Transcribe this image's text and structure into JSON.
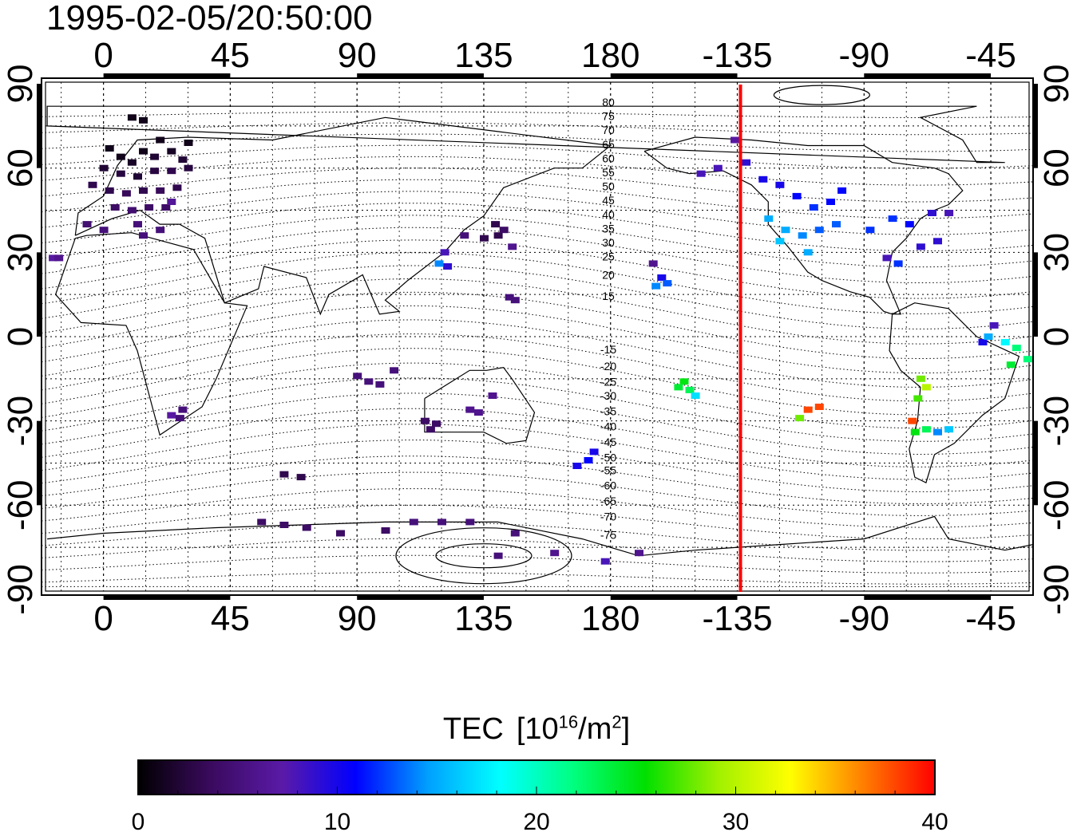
{
  "title": "1995-02-05/20:50:00",
  "map": {
    "x_ticks": [
      "0",
      "45",
      "90",
      "135",
      "180",
      "-135",
      "-90",
      "-45"
    ],
    "x_tick_lons": [
      0,
      45,
      90,
      135,
      180,
      225,
      270,
      315
    ],
    "y_ticks": [
      "90",
      "60",
      "30",
      "0",
      "-30",
      "-60",
      "-90"
    ],
    "y_tick_lats": [
      90,
      60,
      30,
      0,
      -30,
      -60,
      -90
    ],
    "lon_range": [
      -22,
      330
    ],
    "lat_range": [
      -92,
      92
    ],
    "marker_line_lon": -135,
    "marker_line_color": "#ff0000",
    "contour_labels": [
      "80",
      "75",
      "70",
      "65",
      "60",
      "55",
      "50",
      "45",
      "40",
      "35",
      "30",
      "25",
      "20",
      "15",
      "-15",
      "-20",
      "-25",
      "-30",
      "-35",
      "-40",
      "-45",
      "-50",
      "-55",
      "-60",
      "-65",
      "-70",
      "-75"
    ],
    "contour_label_lats": [
      83.5,
      78.5,
      73.5,
      68.5,
      63.5,
      58.5,
      53.5,
      48.5,
      43.5,
      38.5,
      33.5,
      28.5,
      22,
      14.5,
      -4.5,
      -10.5,
      -16,
      -21,
      -26.5,
      -32,
      -37.5,
      -43,
      -47.5,
      -53,
      -58.5,
      -64,
      -70.5
    ]
  },
  "colorbar": {
    "label": "TEC",
    "units_base": "[10",
    "units_exp": "16",
    "units_mid": "/m",
    "units_exp2": "2",
    "units_end": "]",
    "ticks": [
      "0",
      "10",
      "20",
      "30",
      "40"
    ],
    "range": [
      0,
      40
    ],
    "colors": [
      "#000000",
      "#3a0a5e",
      "#5a1aa8",
      "#0000ff",
      "#00a0ff",
      "#00ffff",
      "#00ff80",
      "#00e000",
      "#a0f000",
      "#ffff00",
      "#ff8000",
      "#ff0000"
    ]
  },
  "chart_data": {
    "type": "scatter",
    "title": "1995-02-05/20:50:00",
    "colorbar_label": "TEC [10^16/m^2]",
    "x_axis": "longitude",
    "y_axis": "latitude",
    "xlim": [
      -22,
      330
    ],
    "ylim": [
      -92,
      92
    ],
    "points": [
      {
        "lon": 2,
        "lat": 67,
        "tec": 1
      },
      {
        "lon": 6,
        "lat": 64,
        "tec": 1
      },
      {
        "lon": 10,
        "lat": 62,
        "tec": 1.5
      },
      {
        "lon": 14,
        "lat": 66,
        "tec": 1
      },
      {
        "lon": 18,
        "lat": 64,
        "tec": 2
      },
      {
        "lon": 24,
        "lat": 66,
        "tec": 1.5
      },
      {
        "lon": 28,
        "lat": 63,
        "tec": 2
      },
      {
        "lon": 30,
        "lat": 69,
        "tec": 1
      },
      {
        "lon": 20,
        "lat": 70,
        "tec": 1
      },
      {
        "lon": 0,
        "lat": 60,
        "tec": 2
      },
      {
        "lon": 6,
        "lat": 58,
        "tec": 2.5
      },
      {
        "lon": 12,
        "lat": 57,
        "tec": 2
      },
      {
        "lon": 18,
        "lat": 59,
        "tec": 2.5
      },
      {
        "lon": 24,
        "lat": 59,
        "tec": 3
      },
      {
        "lon": 30,
        "lat": 60,
        "tec": 2.5
      },
      {
        "lon": -4,
        "lat": 54,
        "tec": 3
      },
      {
        "lon": 2,
        "lat": 52,
        "tec": 3
      },
      {
        "lon": 8,
        "lat": 51,
        "tec": 3.5
      },
      {
        "lon": 14,
        "lat": 52,
        "tec": 3
      },
      {
        "lon": 20,
        "lat": 52,
        "tec": 3.5
      },
      {
        "lon": 26,
        "lat": 53,
        "tec": 3
      },
      {
        "lon": 4,
        "lat": 46,
        "tec": 4
      },
      {
        "lon": 10,
        "lat": 45,
        "tec": 4.5
      },
      {
        "lon": 16,
        "lat": 46,
        "tec": 4
      },
      {
        "lon": 22,
        "lat": 46,
        "tec": 4
      },
      {
        "lon": -6,
        "lat": 40,
        "tec": 4.5
      },
      {
        "lon": 0,
        "lat": 38,
        "tec": 5
      },
      {
        "lon": 12,
        "lat": 40,
        "tec": 5
      },
      {
        "lon": 20,
        "lat": 38,
        "tec": 5
      },
      {
        "lon": 14,
        "lat": 36,
        "tec": 5
      },
      {
        "lon": 24,
        "lat": 48,
        "tec": 6.5
      },
      {
        "lon": 10,
        "lat": 78,
        "tec": 1
      },
      {
        "lon": 14,
        "lat": 77,
        "tec": 1
      },
      {
        "lon": -18,
        "lat": 28,
        "tec": 7
      },
      {
        "lon": -16,
        "lat": 28,
        "tec": 6
      },
      {
        "lon": 24,
        "lat": -28,
        "tec": 7
      },
      {
        "lon": 28,
        "lat": -26,
        "tec": 5
      },
      {
        "lon": 27,
        "lat": -29,
        "tec": 5
      },
      {
        "lon": 90,
        "lat": -14,
        "tec": 5
      },
      {
        "lon": 94,
        "lat": -16,
        "tec": 5
      },
      {
        "lon": 98,
        "lat": -17,
        "tec": 5
      },
      {
        "lon": 103,
        "lat": -12,
        "tec": 5
      },
      {
        "lon": 128,
        "lat": 36,
        "tec": 5
      },
      {
        "lon": 135,
        "lat": 35,
        "tec": 3
      },
      {
        "lon": 140,
        "lat": 36,
        "tec": 3
      },
      {
        "lon": 139,
        "lat": 40,
        "tec": 3
      },
      {
        "lon": 142,
        "lat": 38,
        "tec": 4
      },
      {
        "lon": 122,
        "lat": 25,
        "tec": 9
      },
      {
        "lon": 119,
        "lat": 26,
        "tec": 14
      },
      {
        "lon": 121,
        "lat": 30,
        "tec": 8
      },
      {
        "lon": 145,
        "lat": 32,
        "tec": 6
      },
      {
        "lon": 144,
        "lat": 14,
        "tec": 5
      },
      {
        "lon": 146,
        "lat": 13,
        "tec": 5
      },
      {
        "lon": 114,
        "lat": -30,
        "tec": 4
      },
      {
        "lon": 116,
        "lat": -33,
        "tec": 4
      },
      {
        "lon": 118,
        "lat": -31,
        "tec": 4
      },
      {
        "lon": 130,
        "lat": -26,
        "tec": 6
      },
      {
        "lon": 133,
        "lat": -27,
        "tec": 6
      },
      {
        "lon": 138,
        "lat": -21,
        "tec": 6
      },
      {
        "lon": 174,
        "lat": -41,
        "tec": 10
      },
      {
        "lon": 172,
        "lat": -44,
        "tec": 11
      },
      {
        "lon": 168,
        "lat": -46,
        "tec": 10
      },
      {
        "lon": 64,
        "lat": -49,
        "tec": 3
      },
      {
        "lon": 70,
        "lat": -50,
        "tec": 3
      },
      {
        "lon": 56,
        "lat": -66,
        "tec": 4
      },
      {
        "lon": 64,
        "lat": -67,
        "tec": 4
      },
      {
        "lon": 72,
        "lat": -68,
        "tec": 4
      },
      {
        "lon": 84,
        "lat": -70,
        "tec": 4
      },
      {
        "lon": 100,
        "lat": -69,
        "tec": 4
      },
      {
        "lon": 110,
        "lat": -66,
        "tec": 5
      },
      {
        "lon": 120,
        "lat": -66,
        "tec": 5
      },
      {
        "lon": 130,
        "lat": -66,
        "tec": 5
      },
      {
        "lon": 146,
        "lat": -70,
        "tec": 5
      },
      {
        "lon": 140,
        "lat": -78,
        "tec": 5
      },
      {
        "lon": 160,
        "lat": -77,
        "tec": 6
      },
      {
        "lon": 178,
        "lat": -80,
        "tec": 8
      },
      {
        "lon": 190,
        "lat": -77,
        "tec": 6
      },
      {
        "lon": 195,
        "lat": 26,
        "tec": 6
      },
      {
        "lon": 198,
        "lat": 21,
        "tec": 10
      },
      {
        "lon": 200,
        "lat": 19,
        "tec": 13
      },
      {
        "lon": 196,
        "lat": 18,
        "tec": 14
      },
      {
        "lon": 206,
        "lat": -16,
        "tec": 25
      },
      {
        "lon": 208,
        "lat": -19,
        "tec": 23
      },
      {
        "lon": 210,
        "lat": -21,
        "tec": 17
      },
      {
        "lon": 204,
        "lat": -18,
        "tec": 24
      },
      {
        "lon": 212,
        "lat": 58,
        "tec": 8
      },
      {
        "lon": 218,
        "lat": 60,
        "tec": 8
      },
      {
        "lon": 224,
        "lat": 70,
        "tec": 7
      },
      {
        "lon": 228,
        "lat": 62,
        "tec": 9
      },
      {
        "lon": 234,
        "lat": 56,
        "tec": 10
      },
      {
        "lon": 240,
        "lat": 54,
        "tec": 10
      },
      {
        "lon": 246,
        "lat": 50,
        "tec": 11
      },
      {
        "lon": 252,
        "lat": 46,
        "tec": 12
      },
      {
        "lon": 258,
        "lat": 48,
        "tec": 11
      },
      {
        "lon": 262,
        "lat": 52,
        "tec": 11
      },
      {
        "lon": 236,
        "lat": 42,
        "tec": 15
      },
      {
        "lon": 242,
        "lat": 38,
        "tec": 15
      },
      {
        "lon": 248,
        "lat": 36,
        "tec": 14
      },
      {
        "lon": 254,
        "lat": 38,
        "tec": 13
      },
      {
        "lon": 260,
        "lat": 40,
        "tec": 13
      },
      {
        "lon": 240,
        "lat": 34,
        "tec": 16
      },
      {
        "lon": 250,
        "lat": 30,
        "tec": 15
      },
      {
        "lon": 272,
        "lat": 38,
        "tec": 12
      },
      {
        "lon": 280,
        "lat": 42,
        "tec": 12
      },
      {
        "lon": 286,
        "lat": 40,
        "tec": 11
      },
      {
        "lon": 294,
        "lat": 44,
        "tec": 9
      },
      {
        "lon": 278,
        "lat": 28,
        "tec": 8
      },
      {
        "lon": 282,
        "lat": 26,
        "tec": 12
      },
      {
        "lon": 290,
        "lat": 32,
        "tec": 9
      },
      {
        "lon": 296,
        "lat": 34,
        "tec": 9
      },
      {
        "lon": 300,
        "lat": 44,
        "tec": 8
      },
      {
        "lon": 250,
        "lat": -26,
        "tec": 38
      },
      {
        "lon": 254,
        "lat": -25,
        "tec": 38
      },
      {
        "lon": 247,
        "lat": -29,
        "tec": 28
      },
      {
        "lon": 290,
        "lat": -15,
        "tec": 28
      },
      {
        "lon": 292,
        "lat": -18,
        "tec": 30
      },
      {
        "lon": 289,
        "lat": -22,
        "tec": 27
      },
      {
        "lon": 287,
        "lat": -30,
        "tec": 38
      },
      {
        "lon": 288,
        "lat": -34,
        "tec": 25
      },
      {
        "lon": 292,
        "lat": -33,
        "tec": 23
      },
      {
        "lon": 296,
        "lat": -34,
        "tec": 14
      },
      {
        "lon": 300,
        "lat": -33,
        "tec": 16
      },
      {
        "lon": 312,
        "lat": -2,
        "tec": 10
      },
      {
        "lon": 316,
        "lat": 4,
        "tec": 8
      },
      {
        "lon": 320,
        "lat": -2,
        "tec": 18
      },
      {
        "lon": 324,
        "lat": -4,
        "tec": 22
      },
      {
        "lon": 328,
        "lat": -8,
        "tec": 22
      },
      {
        "lon": 322,
        "lat": -10,
        "tec": 24
      },
      {
        "lon": 314,
        "lat": 0,
        "tec": 15
      }
    ]
  }
}
